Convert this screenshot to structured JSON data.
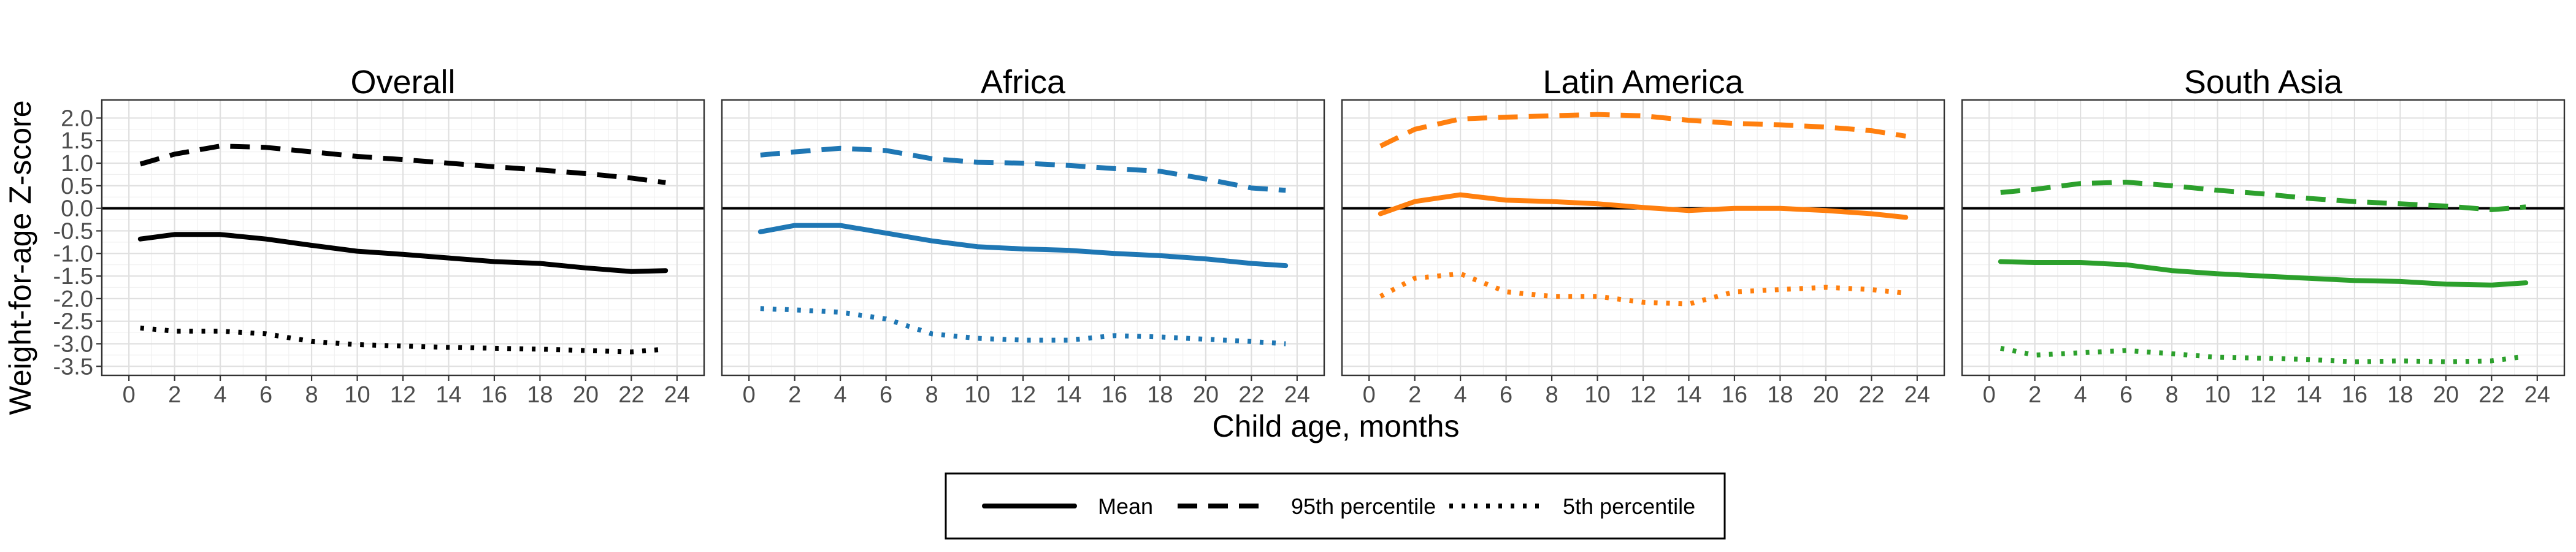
{
  "chart_data": {
    "type": "line",
    "ylabel": "Weight-for-age Z-score",
    "xlabel": "Child age, months",
    "xlim": [
      0,
      24
    ],
    "ylim": [
      -3.7,
      2.4
    ],
    "xticks": [
      0,
      2,
      4,
      6,
      8,
      10,
      12,
      14,
      16,
      18,
      20,
      22,
      24
    ],
    "yticks": [
      -3.5,
      -3.0,
      -2.5,
      -2.0,
      -1.5,
      -1.0,
      -0.5,
      0.0,
      0.5,
      1.0,
      1.5,
      2.0
    ],
    "ytick_labels": [
      "-3.5",
      "-3.0",
      "-2.5",
      "-2.0",
      "-1.5",
      "-1.0",
      "-0.5",
      "0.0",
      "0.5",
      "1.0",
      "1.5",
      "2.0"
    ],
    "reference_line_y": 0,
    "grid": true,
    "legend_position": "bottom",
    "legend": [
      {
        "label": "Mean",
        "style": "solid"
      },
      {
        "label": "95th percentile",
        "style": "dashed"
      },
      {
        "label": "5th percentile",
        "style": "dotted"
      }
    ],
    "x": [
      0.5,
      2,
      4,
      6,
      8,
      10,
      12,
      14,
      16,
      18,
      20,
      22,
      23.5
    ],
    "panels": [
      {
        "title": "Overall",
        "color": "#000000",
        "series": [
          {
            "name": "Mean",
            "style": "solid",
            "values": [
              -0.68,
              -0.58,
              -0.58,
              -0.68,
              -0.82,
              -0.95,
              -1.02,
              -1.1,
              -1.18,
              -1.22,
              -1.32,
              -1.4,
              -1.38
            ]
          },
          {
            "name": "95th percentile",
            "style": "dashed",
            "values": [
              0.98,
              1.2,
              1.38,
              1.35,
              1.25,
              1.15,
              1.08,
              1.0,
              0.92,
              0.85,
              0.77,
              0.67,
              0.57
            ]
          },
          {
            "name": "5th percentile",
            "style": "dotted",
            "values": [
              -2.65,
              -2.72,
              -2.72,
              -2.78,
              -2.95,
              -3.02,
              -3.05,
              -3.08,
              -3.1,
              -3.12,
              -3.15,
              -3.18,
              -3.12
            ]
          }
        ]
      },
      {
        "title": "Africa",
        "color": "#1f77b4",
        "series": [
          {
            "name": "Mean",
            "style": "solid",
            "values": [
              -0.52,
              -0.38,
              -0.38,
              -0.55,
              -0.72,
              -0.85,
              -0.9,
              -0.93,
              -1.0,
              -1.05,
              -1.12,
              -1.22,
              -1.27
            ]
          },
          {
            "name": "95th percentile",
            "style": "dashed",
            "values": [
              1.18,
              1.25,
              1.33,
              1.28,
              1.1,
              1.02,
              1.0,
              0.95,
              0.88,
              0.82,
              0.65,
              0.45,
              0.4
            ]
          },
          {
            "name": "5th percentile",
            "style": "dotted",
            "values": [
              -2.22,
              -2.25,
              -2.3,
              -2.45,
              -2.78,
              -2.88,
              -2.92,
              -2.92,
              -2.82,
              -2.85,
              -2.9,
              -2.95,
              -3.0
            ]
          }
        ]
      },
      {
        "title": "Latin America",
        "color": "#ff7f0e",
        "series": [
          {
            "name": "Mean",
            "style": "solid",
            "values": [
              -0.12,
              0.15,
              0.3,
              0.18,
              0.15,
              0.1,
              0.02,
              -0.05,
              0.0,
              0.0,
              -0.05,
              -0.12,
              -0.2
            ]
          },
          {
            "name": "95th percentile",
            "style": "dashed",
            "values": [
              1.38,
              1.75,
              1.98,
              2.02,
              2.05,
              2.08,
              2.05,
              1.95,
              1.88,
              1.85,
              1.8,
              1.72,
              1.6
            ]
          },
          {
            "name": "5th percentile",
            "style": "dotted",
            "values": [
              -1.95,
              -1.55,
              -1.45,
              -1.85,
              -1.95,
              -1.95,
              -2.08,
              -2.12,
              -1.85,
              -1.8,
              -1.75,
              -1.8,
              -1.88
            ]
          }
        ]
      },
      {
        "title": "South Asia",
        "color": "#2ca02c",
        "series": [
          {
            "name": "Mean",
            "style": "solid",
            "values": [
              -1.18,
              -1.2,
              -1.2,
              -1.25,
              -1.38,
              -1.45,
              -1.5,
              -1.55,
              -1.6,
              -1.62,
              -1.68,
              -1.7,
              -1.65
            ]
          },
          {
            "name": "95th percentile",
            "style": "dashed",
            "values": [
              0.35,
              0.42,
              0.55,
              0.58,
              0.5,
              0.4,
              0.32,
              0.22,
              0.15,
              0.1,
              0.05,
              -0.03,
              0.03
            ]
          },
          {
            "name": "5th percentile",
            "style": "dotted",
            "values": [
              -3.1,
              -3.25,
              -3.2,
              -3.15,
              -3.22,
              -3.3,
              -3.32,
              -3.35,
              -3.4,
              -3.38,
              -3.4,
              -3.38,
              -3.28
            ]
          }
        ]
      }
    ]
  }
}
